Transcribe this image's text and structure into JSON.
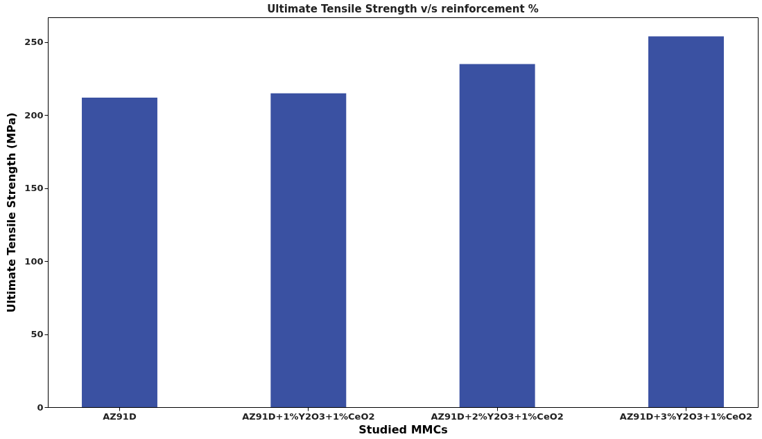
{
  "chart_data": {
    "type": "bar",
    "title": "Ultimate Tensile Strength v/s reinforcement %",
    "xlabel": "Studied MMCs",
    "ylabel": "Ultimate Tensile Strength (MPa)",
    "categories": [
      "AZ91D",
      "AZ91D+1%Y2O3+1%CeO2",
      "AZ91D+2%Y2O3+1%CeO2",
      "AZ91D+3%Y2O3+1%CeO2"
    ],
    "values": [
      212,
      215,
      235,
      254
    ],
    "color": "#3a51a2",
    "ylim": [
      0,
      267
    ],
    "yticks": [
      0,
      50,
      100,
      150,
      200,
      250
    ],
    "grid": false
  }
}
